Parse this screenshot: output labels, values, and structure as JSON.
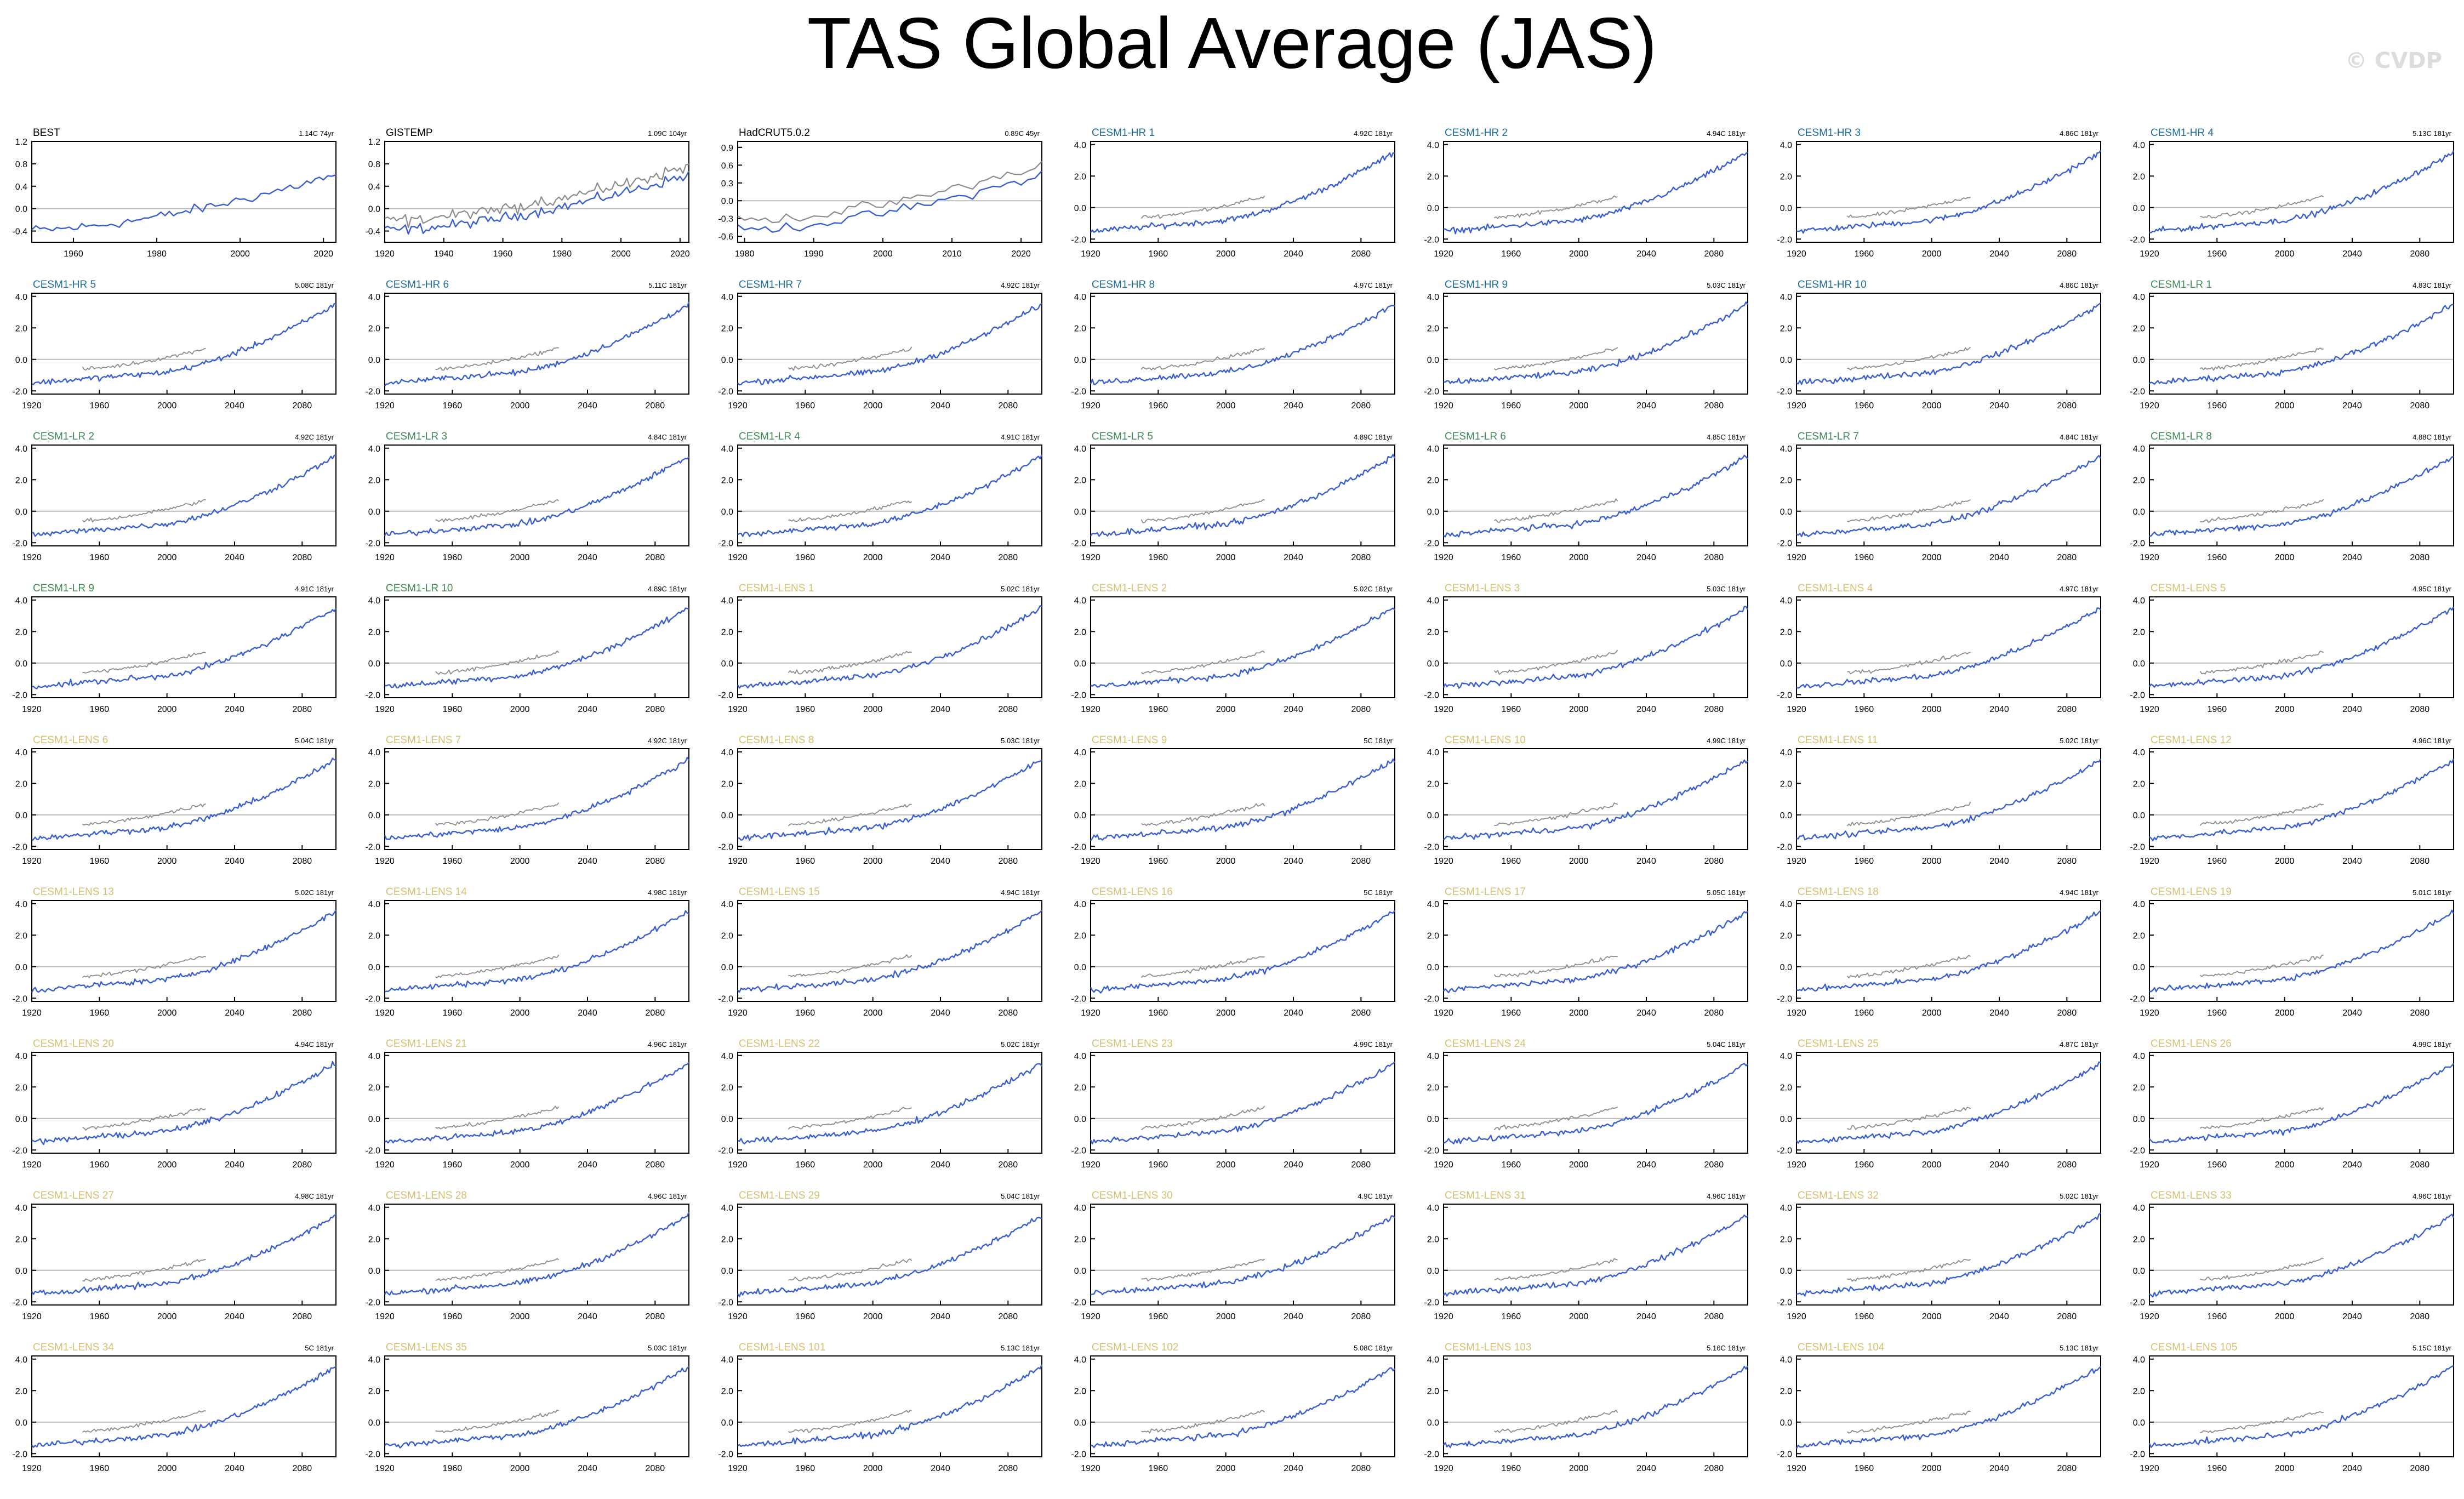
{
  "header": {
    "title": "TAS Global Average (JAS)",
    "credit": "© CVDP"
  },
  "colors": {
    "model_line": "#3a5fd0",
    "obs_line": "#8c8c8c",
    "obs_title": "#000000",
    "hr_title": "#1c6e9c",
    "lr_title": "#3f8a55",
    "lens_title": "#d6c070",
    "zero_line": "#bbbbbb"
  },
  "chart_data": {
    "type": "line",
    "layout": "9 rows x 7 columns of small-multiple panels",
    "obs_panels": [
      {
        "name": "BEST",
        "trend": "1.14C 74yr",
        "ylim": [
          -0.6,
          1.2
        ],
        "yticks": [
          "1.2",
          "0.8",
          "0.4",
          "0.0",
          "-0.4"
        ],
        "yvals": [
          1.2,
          0.8,
          0.4,
          0.0,
          -0.4
        ],
        "xlim": [
          1950,
          2023
        ],
        "xticks": [
          1960,
          1980,
          2000,
          2020
        ],
        "comparison": false
      },
      {
        "name": "GISTEMP",
        "trend": "1.09C 104yr",
        "ylim": [
          -0.6,
          1.2
        ],
        "yticks": [
          "1.2",
          "0.8",
          "0.4",
          "0.0",
          "-0.4"
        ],
        "yvals": [
          1.2,
          0.8,
          0.4,
          0.0,
          -0.4
        ],
        "xlim": [
          1920,
          2023
        ],
        "xticks": [
          1920,
          1940,
          1960,
          1980,
          2000,
          2020
        ],
        "comparison": true
      },
      {
        "name": "HadCRUT5.0.2",
        "trend": "0.89C 45yr",
        "ylim": [
          -0.7,
          1.0
        ],
        "yticks": [
          "0.9",
          "0.6",
          "0.3",
          "0.0",
          "-0.3",
          "-0.6"
        ],
        "yvals": [
          0.9,
          0.6,
          0.3,
          0.0,
          -0.3,
          -0.6
        ],
        "xlim": [
          1979,
          2023
        ],
        "xticks": [
          1980,
          1990,
          2000,
          2010,
          2020
        ],
        "comparison": true
      }
    ],
    "model_axes": {
      "ylim": [
        -2.2,
        4.2
      ],
      "yticks": [
        "4.0",
        "2.0",
        "0.0",
        "-2.0"
      ],
      "yvals": [
        4,
        2,
        0,
        -2
      ],
      "xlim": [
        1920,
        2100
      ],
      "xticks": [
        1920,
        1960,
        2000,
        2040,
        2080
      ]
    },
    "model_panels": [
      {
        "name": "CESM1-HR 1",
        "group": "hr",
        "trend": "4.92C 181yr"
      },
      {
        "name": "CESM1-HR 2",
        "group": "hr",
        "trend": "4.94C 181yr"
      },
      {
        "name": "CESM1-HR 3",
        "group": "hr",
        "trend": "4.86C 181yr"
      },
      {
        "name": "CESM1-HR 4",
        "group": "hr",
        "trend": "5.13C 181yr"
      },
      {
        "name": "CESM1-HR 5",
        "group": "hr",
        "trend": "5.08C 181yr"
      },
      {
        "name": "CESM1-HR 6",
        "group": "hr",
        "trend": "5.11C 181yr"
      },
      {
        "name": "CESM1-HR 7",
        "group": "hr",
        "trend": "4.92C 181yr"
      },
      {
        "name": "CESM1-HR 8",
        "group": "hr",
        "trend": "4.97C 181yr"
      },
      {
        "name": "CESM1-HR 9",
        "group": "hr",
        "trend": "5.03C 181yr"
      },
      {
        "name": "CESM1-HR 10",
        "group": "hr",
        "trend": "4.86C 181yr"
      },
      {
        "name": "CESM1-LR 1",
        "group": "lr",
        "trend": "4.83C 181yr"
      },
      {
        "name": "CESM1-LR 2",
        "group": "lr",
        "trend": "4.92C 181yr"
      },
      {
        "name": "CESM1-LR 3",
        "group": "lr",
        "trend": "4.84C 181yr"
      },
      {
        "name": "CESM1-LR 4",
        "group": "lr",
        "trend": "4.91C 181yr"
      },
      {
        "name": "CESM1-LR 5",
        "group": "lr",
        "trend": "4.89C 181yr"
      },
      {
        "name": "CESM1-LR 6",
        "group": "lr",
        "trend": "4.85C 181yr"
      },
      {
        "name": "CESM1-LR 7",
        "group": "lr",
        "trend": "4.84C 181yr"
      },
      {
        "name": "CESM1-LR 8",
        "group": "lr",
        "trend": "4.88C 181yr"
      },
      {
        "name": "CESM1-LR 9",
        "group": "lr",
        "trend": "4.91C 181yr"
      },
      {
        "name": "CESM1-LR 10",
        "group": "lr",
        "trend": "4.89C 181yr"
      },
      {
        "name": "CESM1-LENS 1",
        "group": "lens",
        "trend": "5.02C 181yr"
      },
      {
        "name": "CESM1-LENS 2",
        "group": "lens",
        "trend": "5.02C 181yr"
      },
      {
        "name": "CESM1-LENS 3",
        "group": "lens",
        "trend": "5.03C 181yr"
      },
      {
        "name": "CESM1-LENS 4",
        "group": "lens",
        "trend": "4.97C 181yr"
      },
      {
        "name": "CESM1-LENS 5",
        "group": "lens",
        "trend": "4.95C 181yr"
      },
      {
        "name": "CESM1-LENS 6",
        "group": "lens",
        "trend": "5.04C 181yr"
      },
      {
        "name": "CESM1-LENS 7",
        "group": "lens",
        "trend": "4.92C 181yr"
      },
      {
        "name": "CESM1-LENS 8",
        "group": "lens",
        "trend": "5.03C 181yr"
      },
      {
        "name": "CESM1-LENS 9",
        "group": "lens",
        "trend": "5C 181yr"
      },
      {
        "name": "CESM1-LENS 10",
        "group": "lens",
        "trend": "4.99C 181yr"
      },
      {
        "name": "CESM1-LENS 11",
        "group": "lens",
        "trend": "5.02C 181yr"
      },
      {
        "name": "CESM1-LENS 12",
        "group": "lens",
        "trend": "4.96C 181yr"
      },
      {
        "name": "CESM1-LENS 13",
        "group": "lens",
        "trend": "5.02C 181yr"
      },
      {
        "name": "CESM1-LENS 14",
        "group": "lens",
        "trend": "4.98C 181yr"
      },
      {
        "name": "CESM1-LENS 15",
        "group": "lens",
        "trend": "4.94C 181yr"
      },
      {
        "name": "CESM1-LENS 16",
        "group": "lens",
        "trend": "5C 181yr"
      },
      {
        "name": "CESM1-LENS 17",
        "group": "lens",
        "trend": "5.05C 181yr"
      },
      {
        "name": "CESM1-LENS 18",
        "group": "lens",
        "trend": "4.94C 181yr"
      },
      {
        "name": "CESM1-LENS 19",
        "group": "lens",
        "trend": "5.01C 181yr"
      },
      {
        "name": "CESM1-LENS 20",
        "group": "lens",
        "trend": "4.94C 181yr"
      },
      {
        "name": "CESM1-LENS 21",
        "group": "lens",
        "trend": "4.96C 181yr"
      },
      {
        "name": "CESM1-LENS 22",
        "group": "lens",
        "trend": "5.02C 181yr"
      },
      {
        "name": "CESM1-LENS 23",
        "group": "lens",
        "trend": "4.99C 181yr"
      },
      {
        "name": "CESM1-LENS 24",
        "group": "lens",
        "trend": "5.04C 181yr"
      },
      {
        "name": "CESM1-LENS 25",
        "group": "lens",
        "trend": "4.87C 181yr"
      },
      {
        "name": "CESM1-LENS 26",
        "group": "lens",
        "trend": "4.99C 181yr"
      },
      {
        "name": "CESM1-LENS 27",
        "group": "lens",
        "trend": "4.98C 181yr"
      },
      {
        "name": "CESM1-LENS 28",
        "group": "lens",
        "trend": "4.96C 181yr"
      },
      {
        "name": "CESM1-LENS 29",
        "group": "lens",
        "trend": "5.04C 181yr"
      },
      {
        "name": "CESM1-LENS 30",
        "group": "lens",
        "trend": "4.9C 181yr"
      },
      {
        "name": "CESM1-LENS 31",
        "group": "lens",
        "trend": "4.96C 181yr"
      },
      {
        "name": "CESM1-LENS 32",
        "group": "lens",
        "trend": "5.02C 181yr"
      },
      {
        "name": "CESM1-LENS 33",
        "group": "lens",
        "trend": "4.96C 181yr"
      },
      {
        "name": "CESM1-LENS 34",
        "group": "lens",
        "trend": "5C 181yr"
      },
      {
        "name": "CESM1-LENS 35",
        "group": "lens",
        "trend": "5.03C 181yr"
      },
      {
        "name": "CESM1-LENS 101",
        "group": "lens",
        "trend": "5.13C 181yr"
      },
      {
        "name": "CESM1-LENS 102",
        "group": "lens",
        "trend": "5.08C 181yr"
      },
      {
        "name": "CESM1-LENS 103",
        "group": "lens",
        "trend": "5.16C 181yr"
      },
      {
        "name": "CESM1-LENS 104",
        "group": "lens",
        "trend": "5.13C 181yr"
      },
      {
        "name": "CESM1-LENS 105",
        "group": "lens",
        "trend": "5.15C 181yr"
      }
    ],
    "model_series_shape": {
      "start_value_1920": -1.5,
      "value_1990": -0.9,
      "end_value_2100": 3.5,
      "obs_overlay_years": [
        1950,
        2023
      ],
      "obs_overlay_values": [
        -0.6,
        0.7
      ]
    }
  }
}
